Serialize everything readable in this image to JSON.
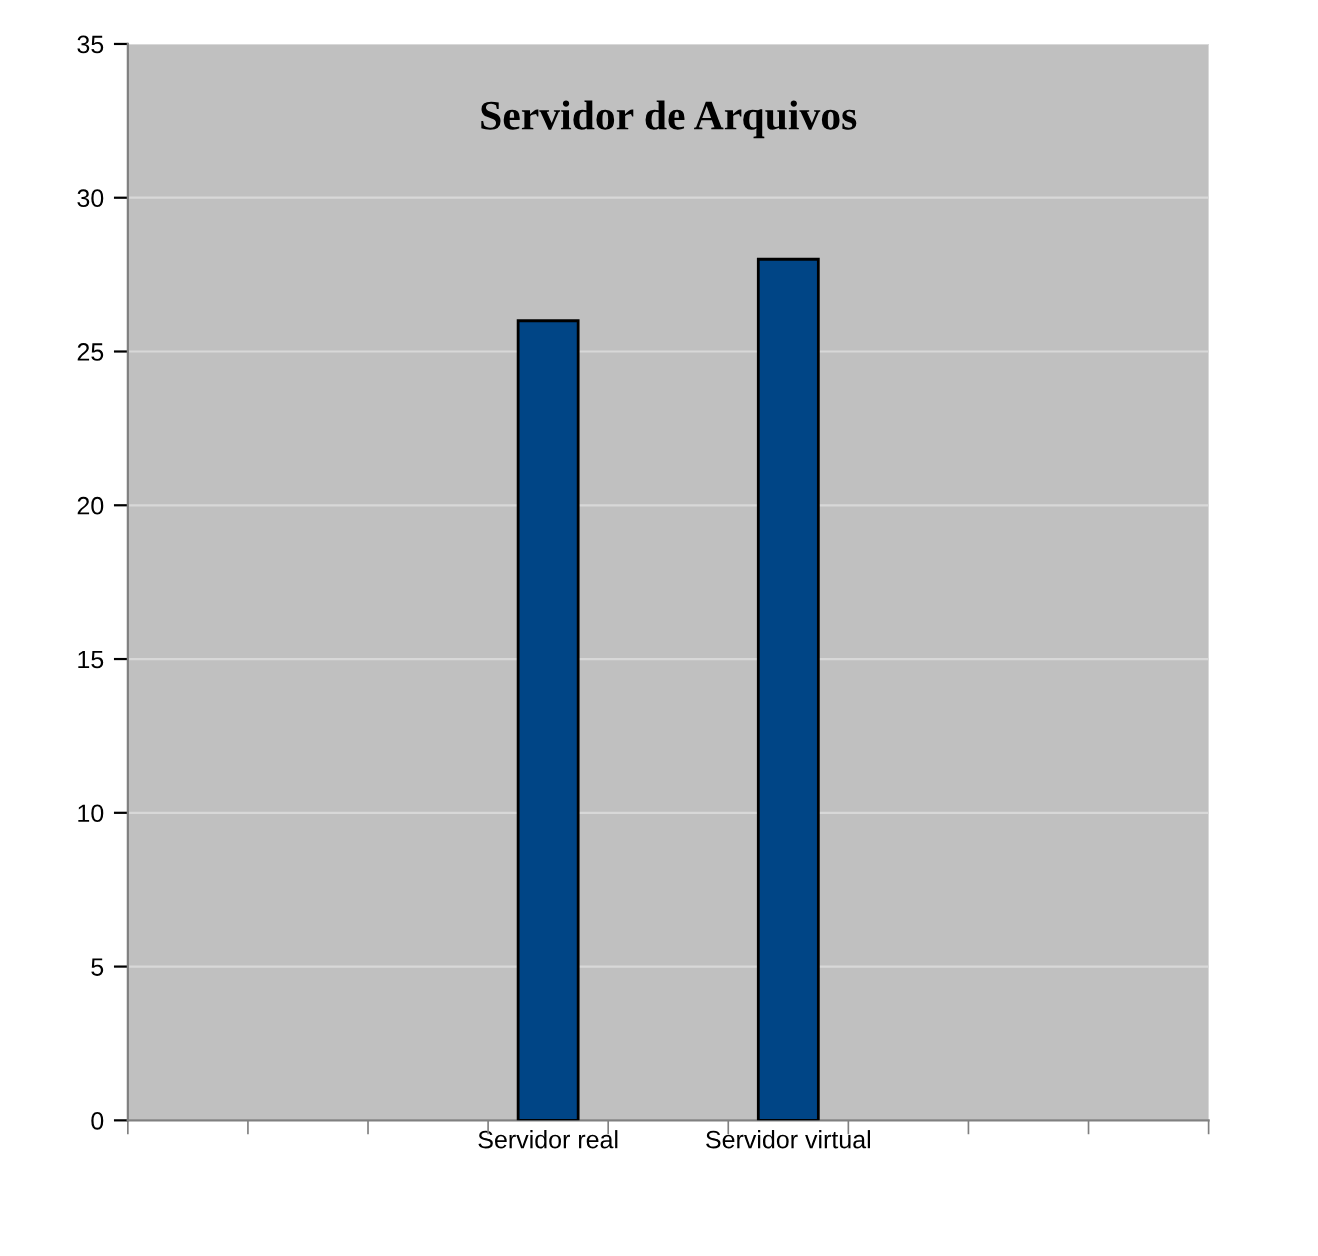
{
  "chart_data": {
    "type": "bar",
    "title": "Servidor de Arquivos",
    "categories": [
      null,
      null,
      null,
      "Servidor real",
      null,
      "Servidor virtual",
      null,
      null,
      null
    ],
    "values": [
      null,
      null,
      null,
      26,
      null,
      28,
      null,
      null,
      null
    ],
    "color": "#004586",
    "ylim": [
      0,
      35
    ],
    "yticks": [
      0,
      5,
      10,
      15,
      20,
      25,
      30,
      35
    ],
    "grid": "y"
  }
}
